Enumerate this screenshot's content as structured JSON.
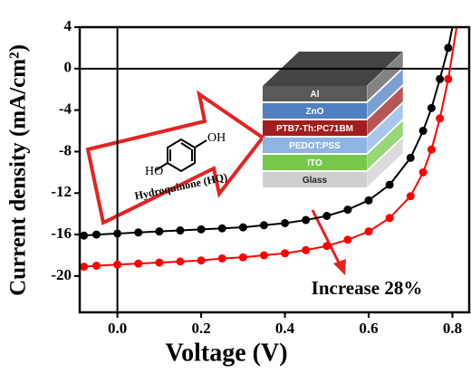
{
  "chart_data": {
    "type": "line",
    "x_label": "Voltage (V)",
    "y_label": "Current density (mA/cm²)",
    "xlim": [
      -0.09,
      0.84
    ],
    "ylim": [
      -23.5,
      4
    ],
    "xticks": [
      {
        "value": 0,
        "label": "0.0"
      },
      0.2,
      0.4,
      0.6,
      0.8
    ],
    "yticks": [
      4,
      0,
      -4,
      -8,
      -12,
      -16,
      -20
    ],
    "series": [
      {
        "color": "#000000",
        "x": [
          -0.08,
          -0.05,
          0,
          0.05,
          0.1,
          0.15,
          0.2,
          0.25,
          0.3,
          0.35,
          0.4,
          0.45,
          0.5,
          0.55,
          0.6,
          0.65,
          0.7,
          0.73,
          0.75,
          0.77,
          0.79,
          0.8
        ],
        "values": [
          -16.1,
          -16.0,
          -15.9,
          -15.8,
          -15.7,
          -15.6,
          -15.5,
          -15.4,
          -15.3,
          -15.1,
          -14.9,
          -14.6,
          -14.2,
          -13.6,
          -12.7,
          -11.2,
          -8.6,
          -6.0,
          -3.8,
          -1.0,
          2.0,
          4.0
        ]
      },
      {
        "color": "#ff0000",
        "x": [
          -0.08,
          -0.05,
          0,
          0.05,
          0.1,
          0.15,
          0.2,
          0.25,
          0.3,
          0.35,
          0.4,
          0.45,
          0.5,
          0.55,
          0.6,
          0.65,
          0.7,
          0.73,
          0.75,
          0.77,
          0.79,
          0.81
        ],
        "values": [
          -19.1,
          -19.0,
          -18.9,
          -18.8,
          -18.7,
          -18.6,
          -18.5,
          -18.3,
          -18.2,
          -18.0,
          -17.8,
          -17.5,
          -17.1,
          -16.5,
          -15.7,
          -14.4,
          -12.3,
          -10.0,
          -7.8,
          -4.8,
          -1.0,
          4.0
        ]
      }
    ],
    "annotation": "Increase 28%",
    "molecule": {
      "name": "Hydroquinone (HQ)",
      "left_group": "HO",
      "right_group": "OH"
    },
    "device_layers": [
      {
        "label": "Al",
        "color": "#595959"
      },
      {
        "label": "ZnO",
        "color": "#4f7fc0"
      },
      {
        "label": "PTB7-Th:PC71BM",
        "color": "#a01e1e"
      },
      {
        "label": "PEDOT:PSS",
        "color": "#8db4e2"
      },
      {
        "label": "ITO",
        "color": "#77c84a"
      },
      {
        "label": "Glass",
        "color": "#cfcfcf"
      }
    ]
  }
}
